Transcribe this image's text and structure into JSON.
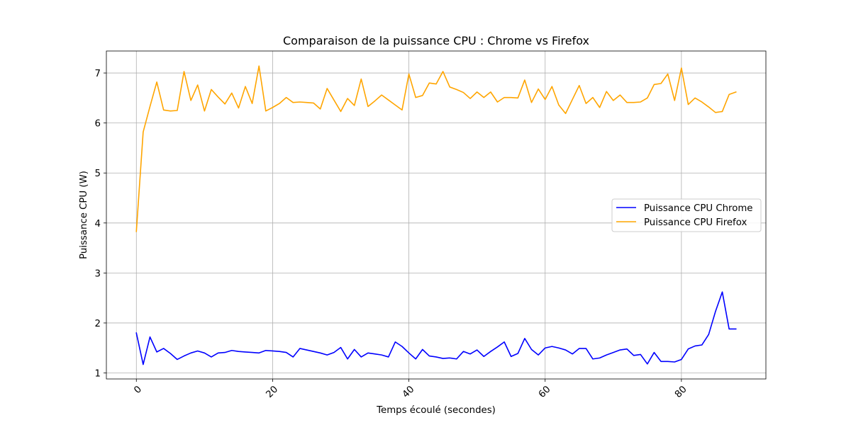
{
  "chart_data": {
    "type": "line",
    "title": "Comparaison de la puissance CPU : Chrome vs Firefox",
    "xlabel": "Temps écoulé (secondes)",
    "ylabel": "Puissance CPU (W)",
    "xlim": [
      -4.4,
      92.4
    ],
    "ylim": [
      0.88,
      7.44
    ],
    "xticks": [
      0,
      20,
      40,
      60,
      80
    ],
    "yticks": [
      1,
      2,
      3,
      4,
      5,
      6,
      7
    ],
    "xtick_rotation": 45,
    "grid": true,
    "legend_position": "center-right",
    "series": [
      {
        "name": "Puissance CPU Chrome",
        "color": "#0000ff",
        "x": [
          0,
          1,
          2,
          3,
          4,
          5,
          6,
          7,
          8,
          9,
          10,
          11,
          12,
          13,
          14,
          15,
          16,
          17,
          18,
          19,
          20,
          21,
          22,
          23,
          24,
          25,
          26,
          27,
          28,
          29,
          30,
          31,
          32,
          33,
          34,
          35,
          36,
          37,
          38,
          39,
          40,
          41,
          42,
          43,
          44,
          45,
          46,
          47,
          48,
          49,
          50,
          51,
          52,
          53,
          54,
          55,
          56,
          57,
          58,
          59,
          60,
          61,
          62,
          63,
          64,
          65,
          66,
          67,
          68,
          69,
          70,
          71,
          72,
          73,
          74,
          75,
          76,
          77,
          78,
          79,
          80,
          81,
          82,
          83,
          84,
          85,
          86,
          87,
          88
        ],
        "y": [
          1.8,
          1.17,
          1.72,
          1.42,
          1.49,
          1.39,
          1.27,
          1.34,
          1.4,
          1.44,
          1.4,
          1.32,
          1.4,
          1.41,
          1.45,
          1.43,
          1.42,
          1.41,
          1.4,
          1.45,
          1.44,
          1.43,
          1.41,
          1.32,
          1.49,
          1.46,
          1.43,
          1.4,
          1.36,
          1.41,
          1.51,
          1.28,
          1.47,
          1.32,
          1.4,
          1.38,
          1.36,
          1.32,
          1.62,
          1.53,
          1.4,
          1.28,
          1.47,
          1.34,
          1.32,
          1.29,
          1.3,
          1.28,
          1.43,
          1.38,
          1.46,
          1.33,
          1.43,
          1.52,
          1.62,
          1.33,
          1.39,
          1.69,
          1.47,
          1.36,
          1.5,
          1.53,
          1.5,
          1.46,
          1.38,
          1.49,
          1.49,
          1.28,
          1.3,
          1.36,
          1.41,
          1.46,
          1.48,
          1.35,
          1.37,
          1.18,
          1.41,
          1.23,
          1.23,
          1.22,
          1.27,
          1.48,
          1.54,
          1.56,
          1.77,
          2.23,
          2.62,
          1.88,
          1.88
        ]
      },
      {
        "name": "Puissance CPU Firefox",
        "color": "#ffa500",
        "x": [
          0,
          1,
          2,
          3,
          4,
          5,
          6,
          7,
          8,
          9,
          10,
          11,
          12,
          13,
          14,
          15,
          16,
          17,
          18,
          19,
          20,
          21,
          22,
          23,
          24,
          25,
          26,
          27,
          28,
          29,
          30,
          31,
          32,
          33,
          34,
          35,
          36,
          37,
          38,
          39,
          40,
          41,
          42,
          43,
          44,
          45,
          46,
          47,
          48,
          49,
          50,
          51,
          52,
          53,
          54,
          55,
          56,
          57,
          58,
          59,
          60,
          61,
          62,
          63,
          64,
          65,
          66,
          67,
          68,
          69,
          70,
          71,
          72,
          73,
          74,
          75,
          76,
          77,
          78,
          79,
          80,
          81,
          82,
          83,
          84,
          85,
          86,
          87,
          88
        ],
        "y": [
          3.83,
          5.82,
          6.33,
          6.82,
          6.26,
          6.24,
          6.25,
          7.03,
          6.45,
          6.76,
          6.24,
          6.67,
          6.52,
          6.38,
          6.6,
          6.3,
          6.73,
          6.39,
          7.14,
          6.24,
          6.31,
          6.39,
          6.51,
          6.41,
          6.42,
          6.41,
          6.4,
          6.28,
          6.69,
          6.46,
          6.23,
          6.49,
          6.35,
          6.88,
          6.33,
          6.44,
          6.56,
          6.46,
          6.36,
          6.26,
          6.98,
          6.51,
          6.55,
          6.8,
          6.78,
          7.03,
          6.72,
          6.67,
          6.61,
          6.49,
          6.62,
          6.51,
          6.62,
          6.42,
          6.51,
          6.51,
          6.5,
          6.86,
          6.41,
          6.68,
          6.47,
          6.73,
          6.36,
          6.19,
          6.47,
          6.75,
          6.39,
          6.51,
          6.31,
          6.63,
          6.45,
          6.56,
          6.41,
          6.41,
          6.42,
          6.5,
          6.77,
          6.79,
          6.98,
          6.45,
          7.1,
          6.37,
          6.5,
          6.42,
          6.32,
          6.21,
          6.23,
          6.57,
          6.62
        ]
      }
    ]
  }
}
